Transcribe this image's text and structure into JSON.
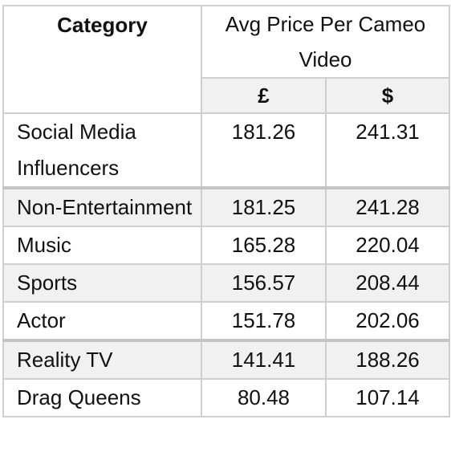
{
  "table": {
    "header": {
      "category": "Category",
      "group": "Avg Price Per Cameo Video",
      "currency_gbp": "£",
      "currency_usd": "$"
    },
    "rows": [
      {
        "category": "Social Media Influencers",
        "gbp": "181.26",
        "usd": "241.31"
      },
      {
        "category": "Non-Entertainment",
        "gbp": "181.25",
        "usd": "241.28"
      },
      {
        "category": "Music",
        "gbp": "165.28",
        "usd": "220.04"
      },
      {
        "category": "Sports",
        "gbp": "156.57",
        "usd": "208.44"
      },
      {
        "category": "Actor",
        "gbp": "151.78",
        "usd": "202.06"
      },
      {
        "category": "Reality TV",
        "gbp": "141.41",
        "usd": "188.26"
      },
      {
        "category": "Drag Queens",
        "gbp": "80.48",
        "usd": "107.14"
      }
    ]
  },
  "colors": {
    "border": "#cfcfcf",
    "row_alt_background": "#f1f1f1",
    "text": "#111111"
  }
}
